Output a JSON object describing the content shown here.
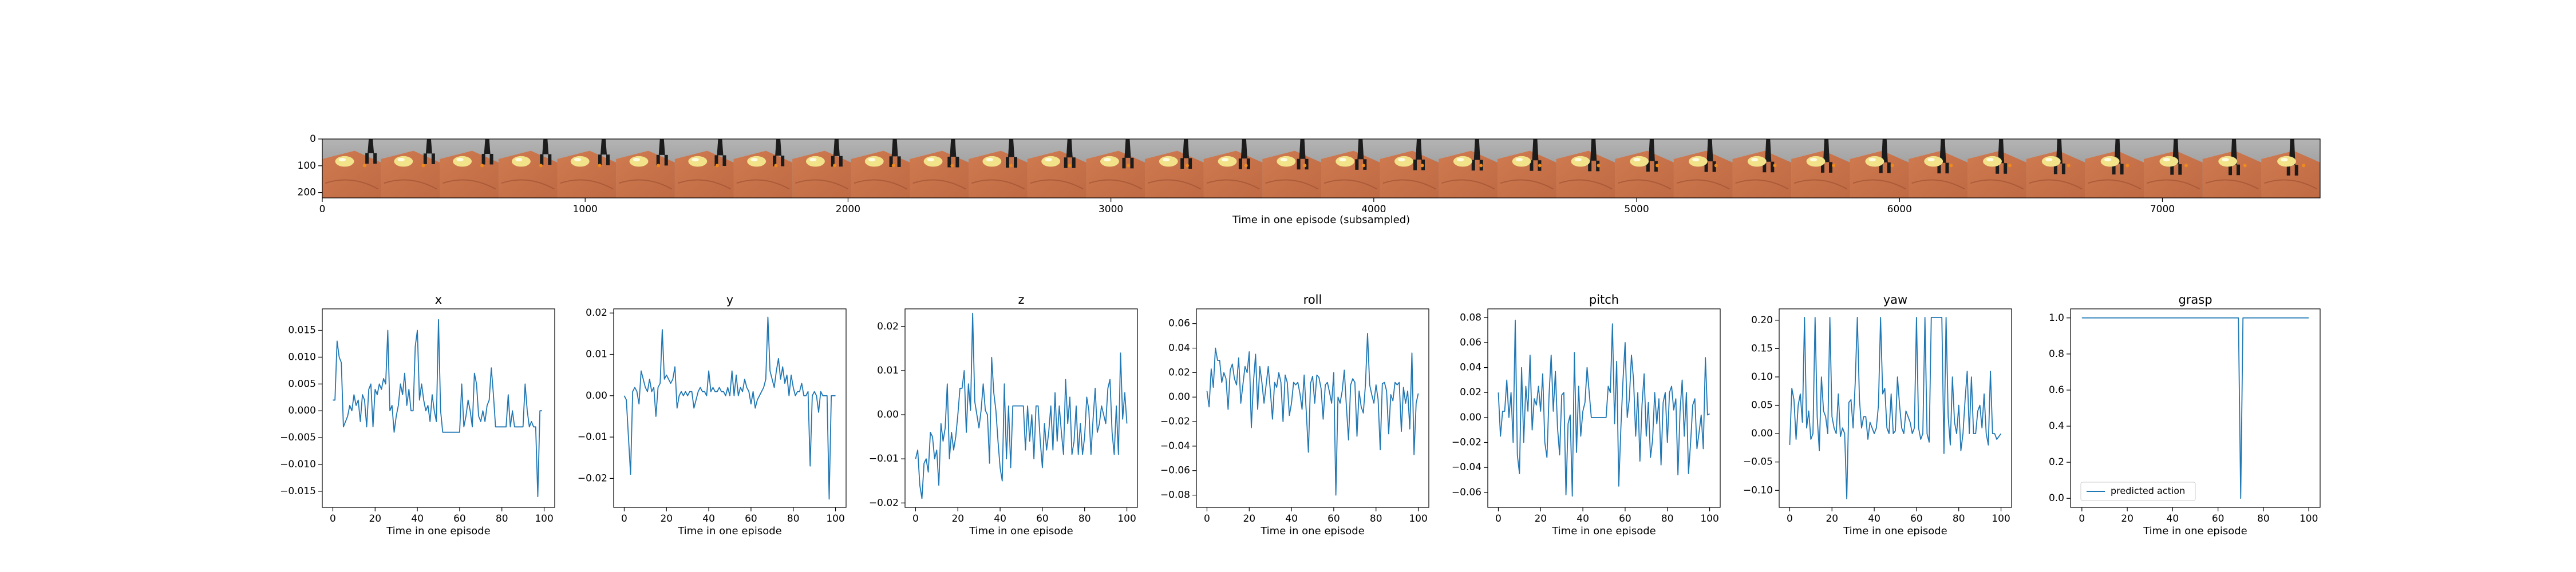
{
  "colors": {
    "line": "#1f77b4",
    "axis": "#000000",
    "background": "#ffffff"
  },
  "chart_data": [
    {
      "type": "image_strip",
      "xlabel": "Time in one episode (subsampled)",
      "xticks": [
        0,
        1000,
        2000,
        3000,
        4000,
        5000,
        6000,
        7000
      ],
      "yticks": [
        0,
        100,
        200
      ],
      "xlim": [
        0,
        7600
      ],
      "ylim": [
        0,
        220
      ],
      "frame_count": 34,
      "scene_colors": {
        "wall": "#8a8a8a",
        "floor": "#c06a44",
        "object": "#f2e28a",
        "gripper": "#1c1c1c"
      }
    },
    {
      "type": "line",
      "title": "x",
      "xlabel": "Time in one episode",
      "xticks": [
        0,
        20,
        40,
        60,
        80,
        100
      ],
      "yticks": [
        -0.015,
        -0.01,
        -0.005,
        0.0,
        0.005,
        0.01,
        0.015
      ],
      "ytick_labels": [
        "−0.015",
        "−0.010",
        "−0.005",
        "0.000",
        "0.005",
        "0.010",
        "0.015"
      ],
      "xlim": [
        -5,
        105
      ],
      "ylim": [
        -0.018,
        0.019
      ],
      "series": [
        {
          "values": [
            0.002,
            0.002,
            0.013,
            0.01,
            0.009,
            -0.003,
            -0.002,
            -0.001,
            0.001,
            0.0,
            0.003,
            0.001,
            0.002,
            -0.002,
            0.003,
            0.002,
            -0.003,
            0.004,
            0.005,
            -0.003,
            0.004,
            0.003,
            0.005,
            0.004,
            0.006,
            0.005,
            0.015,
            0.0,
            0.001,
            -0.004,
            -0.001,
            0.001,
            0.005,
            0.003,
            0.007,
            0.001,
            0.004,
            0.0,
            0.0,
            0.012,
            0.015,
            0.002,
            0.005,
            0.002,
            0.0,
            0.001,
            -0.002,
            0.003,
            0.0,
            -0.002,
            0.017,
            0.0,
            -0.004,
            -0.004,
            -0.004,
            -0.004,
            -0.004,
            -0.004,
            -0.004,
            -0.004,
            -0.004,
            0.005,
            -0.003,
            -0.001,
            0.002,
            0.0,
            -0.003,
            0.007,
            0.005,
            -0.001,
            -0.002,
            0.0,
            -0.002,
            0.001,
            0.002,
            0.008,
            0.003,
            -0.003,
            -0.003,
            -0.003,
            -0.003,
            -0.003,
            -0.003,
            0.003,
            -0.003,
            0.0,
            -0.003,
            -0.003,
            -0.003,
            -0.003,
            -0.003,
            0.005,
            0.0,
            -0.003,
            -0.002,
            -0.003,
            -0.003,
            -0.016,
            0.0,
            0.0
          ]
        }
      ]
    },
    {
      "type": "line",
      "title": "y",
      "xlabel": "Time in one episode",
      "xticks": [
        0,
        20,
        40,
        60,
        80,
        100
      ],
      "yticks": [
        -0.02,
        -0.01,
        0.0,
        0.01,
        0.02
      ],
      "ytick_labels": [
        "−0.02",
        "−0.01",
        "0.00",
        "0.01",
        "0.02"
      ],
      "xlim": [
        -5,
        105
      ],
      "ylim": [
        -0.027,
        0.021
      ],
      "series": [
        {
          "values": [
            0.0,
            -0.001,
            -0.01,
            -0.019,
            0.001,
            0.002,
            0.001,
            -0.002,
            0.006,
            0.004,
            0.002,
            0.001,
            0.004,
            0.001,
            0.002,
            -0.005,
            0.002,
            0.003,
            0.016,
            0.004,
            0.005,
            0.004,
            0.003,
            0.004,
            0.007,
            -0.003,
            0.0,
            0.001,
            0.0,
            0.001,
            0.0,
            0.001,
            0.001,
            -0.003,
            -0.001,
            0.001,
            0.002,
            0.001,
            0.001,
            0.0,
            0.006,
            0.001,
            0.002,
            0.001,
            0.001,
            0.002,
            0.001,
            0.001,
            0.0,
            0.002,
            0.0,
            0.006,
            0.0,
            0.005,
            0.0,
            0.002,
            0.001,
            0.004,
            0.002,
            0.001,
            -0.002,
            0.001,
            -0.003,
            -0.001,
            0.0,
            0.001,
            0.002,
            0.004,
            0.019,
            0.006,
            0.004,
            0.002,
            0.006,
            0.009,
            0.004,
            0.007,
            0.003,
            0.005,
            0.0,
            0.005,
            0.002,
            0.0,
            0.001,
            0.001,
            0.003,
            0.0,
            0.0,
            0.001,
            -0.017,
            0.0,
            0.001,
            0.0,
            -0.004,
            0.001,
            0.0,
            0.0,
            0.0,
            -0.025,
            0.0,
            0.0,
            0.0
          ]
        }
      ]
    },
    {
      "type": "line",
      "title": "z",
      "xlabel": "Time in one episode",
      "xticks": [
        0,
        20,
        40,
        60,
        80,
        100
      ],
      "yticks": [
        -0.02,
        -0.01,
        0.0,
        0.01,
        0.02
      ],
      "ytick_labels": [
        "−0.02",
        "−0.01",
        "0.00",
        "0.01",
        "0.02"
      ],
      "xlim": [
        -5,
        105
      ],
      "ylim": [
        -0.021,
        0.024
      ],
      "series": [
        {
          "values": [
            -0.01,
            -0.008,
            -0.016,
            -0.019,
            -0.011,
            -0.01,
            -0.013,
            -0.004,
            -0.005,
            -0.01,
            -0.008,
            -0.016,
            -0.002,
            -0.006,
            -0.003,
            0.007,
            -0.01,
            -0.004,
            -0.008,
            -0.005,
            0.0,
            0.006,
            0.006,
            0.01,
            -0.004,
            0.007,
            0.001,
            0.023,
            0.003,
            0.0,
            -0.003,
            0.001,
            0.007,
            0.001,
            0.0,
            -0.011,
            0.013,
            0.005,
            0.001,
            -0.006,
            -0.012,
            -0.015,
            0.007,
            -0.01,
            0.002,
            -0.012,
            0.002,
            0.002,
            0.002,
            0.002,
            0.002,
            0.002,
            -0.008,
            0.002,
            -0.006,
            0.0,
            -0.01,
            0.002,
            0.002,
            -0.006,
            -0.012,
            -0.002,
            -0.008,
            -0.004,
            0.002,
            -0.008,
            0.005,
            -0.006,
            0.002,
            -0.004,
            -0.009,
            0.008,
            -0.002,
            0.004,
            -0.009,
            -0.006,
            0.002,
            -0.009,
            -0.002,
            -0.009,
            -0.005,
            0.004,
            0.001,
            -0.009,
            -0.001,
            0.006,
            -0.004,
            -0.002,
            0.002,
            0.0,
            -0.002,
            0.006,
            0.008,
            -0.004,
            -0.009,
            0.002,
            -0.009,
            0.014,
            -0.001,
            0.005,
            -0.002
          ]
        }
      ]
    },
    {
      "type": "line",
      "title": "roll",
      "xlabel": "Time in one episode",
      "xticks": [
        0,
        20,
        40,
        60,
        80,
        100
      ],
      "yticks": [
        -0.08,
        -0.06,
        -0.04,
        -0.02,
        0.0,
        0.02,
        0.04,
        0.06
      ],
      "ytick_labels": [
        "−0.08",
        "−0.06",
        "−0.04",
        "−0.02",
        "0.00",
        "0.02",
        "0.04",
        "0.06"
      ],
      "xlim": [
        -5,
        105
      ],
      "ylim": [
        -0.09,
        0.072
      ],
      "series": [
        {
          "values": [
            0.005,
            -0.008,
            0.023,
            0.008,
            0.04,
            0.03,
            0.03,
            0.012,
            0.02,
            0.015,
            -0.01,
            0.022,
            0.027,
            0.015,
            0.01,
            0.032,
            -0.005,
            0.01,
            0.025,
            0.02,
            0.037,
            -0.025,
            0.012,
            0.035,
            -0.01,
            0.025,
            0.012,
            -0.005,
            0.01,
            0.025,
            0.005,
            -0.018,
            0.012,
            0.008,
            0.02,
            0.012,
            -0.02,
            0.018,
            0.012,
            -0.015,
            -0.005,
            0.012,
            0.01,
            0.012,
            0.003,
            -0.01,
            0.018,
            -0.012,
            -0.045,
            0.011,
            0.017,
            -0.005,
            0.018,
            0.016,
            0.007,
            -0.018,
            0.01,
            0.012,
            0.004,
            -0.005,
            0.02,
            -0.08,
            0.0,
            -0.005,
            0.005,
            0.022,
            -0.008,
            -0.035,
            0.01,
            0.015,
            0.012,
            -0.032,
            0.005,
            -0.008,
            -0.013,
            0.01,
            0.052,
            0.01,
            0.002,
            -0.005,
            0.01,
            -0.002,
            -0.043,
            0.011,
            0.012,
            0.005,
            -0.03,
            0.002,
            -0.003,
            0.012,
            0.01,
            0.012,
            -0.028,
            0.008,
            -0.005,
            0.005,
            -0.026,
            0.036,
            -0.047,
            -0.005,
            0.003
          ]
        }
      ]
    },
    {
      "type": "line",
      "title": "pitch",
      "xlabel": "Time in one episode",
      "xticks": [
        0,
        20,
        40,
        60,
        80,
        100
      ],
      "yticks": [
        -0.06,
        -0.04,
        -0.02,
        0.0,
        0.02,
        0.04,
        0.06,
        0.08
      ],
      "ytick_labels": [
        "−0.06",
        "−0.04",
        "−0.02",
        "0.00",
        "0.02",
        "0.04",
        "0.06",
        "0.08"
      ],
      "xlim": [
        -5,
        105
      ],
      "ylim": [
        -0.072,
        0.087
      ],
      "series": [
        {
          "values": [
            0.02,
            -0.015,
            0.005,
            0.005,
            0.03,
            0.0,
            0.02,
            -0.02,
            0.078,
            -0.03,
            -0.045,
            0.04,
            -0.02,
            0.025,
            0.005,
            0.05,
            -0.01,
            0.015,
            0.01,
            0.025,
            0.005,
            0.035,
            -0.02,
            -0.032,
            0.018,
            0.05,
            0.005,
            0.037,
            -0.008,
            -0.03,
            0.018,
            0.02,
            -0.062,
            -0.005,
            0.002,
            -0.063,
            0.052,
            -0.028,
            0.025,
            -0.015,
            0.005,
            0.012,
            0.04,
            0.02,
            0.0,
            0.0,
            0.0,
            0.0,
            0.0,
            0.0,
            0.0,
            0.0,
            0.025,
            0.02,
            0.075,
            -0.005,
            0.045,
            -0.055,
            -0.008,
            0.03,
            0.06,
            0.0,
            0.015,
            0.05,
            0.03,
            -0.015,
            0.02,
            -0.035,
            0.01,
            0.035,
            -0.015,
            0.012,
            -0.032,
            -0.018,
            0.02,
            -0.005,
            0.015,
            -0.038,
            0.012,
            0.02,
            -0.02,
            0.02,
            0.025,
            0.006,
            0.015,
            -0.046,
            0.005,
            0.03,
            -0.015,
            0.02,
            -0.045,
            -0.02,
            0.01,
            0.015,
            -0.025,
            -0.012,
            0.002,
            -0.025,
            0.048,
            0.002,
            0.003
          ]
        }
      ]
    },
    {
      "type": "line",
      "title": "yaw",
      "xlabel": "Time in one episode",
      "xticks": [
        0,
        20,
        40,
        60,
        80,
        100
      ],
      "yticks": [
        -0.1,
        -0.05,
        0.0,
        0.05,
        0.1,
        0.15,
        0.2
      ],
      "ytick_labels": [
        "−0.10",
        "−0.05",
        "0.00",
        "0.05",
        "0.10",
        "0.15",
        "0.20"
      ],
      "xlim": [
        -5,
        105
      ],
      "ylim": [
        -0.13,
        0.22
      ],
      "series": [
        {
          "values": [
            -0.02,
            0.08,
            0.06,
            -0.01,
            0.05,
            0.07,
            0.02,
            0.205,
            0.01,
            0.04,
            -0.01,
            0.0,
            0.205,
            0.03,
            -0.03,
            0.1,
            0.04,
            0.03,
            0.0,
            0.205,
            0.03,
            0.01,
            0.0,
            0.07,
            -0.005,
            0.01,
            0.0,
            -0.115,
            0.055,
            0.06,
            0.01,
            0.09,
            0.205,
            0.06,
            0.01,
            0.03,
            0.03,
            -0.01,
            0.02,
            0.01,
            0.0,
            0.01,
            0.05,
            0.205,
            0.07,
            0.08,
            0.01,
            0.0,
            0.07,
            0.0,
            0.005,
            0.1,
            0.05,
            0.01,
            0.0,
            0.04,
            0.03,
            0.02,
            0.0,
            0.01,
            0.205,
            0.01,
            -0.01,
            0.0,
            0.205,
            0.0,
            -0.015,
            0.205,
            0.205,
            0.205,
            0.205,
            0.205,
            0.205,
            -0.035,
            0.205,
            0.03,
            -0.02,
            0.1,
            0.02,
            0.0,
            0.05,
            -0.03,
            0.0,
            0.06,
            0.11,
            0.0,
            0.1,
            0.0,
            0.0,
            0.04,
            0.05,
            0.01,
            0.07,
            0.0,
            -0.02,
            0.11,
            0.0,
            0.0,
            -0.01,
            -0.005,
            0.0
          ]
        }
      ]
    },
    {
      "type": "line",
      "title": "grasp",
      "xlabel": "Time in one episode",
      "xticks": [
        0,
        20,
        40,
        60,
        80,
        100
      ],
      "yticks": [
        0.0,
        0.2,
        0.4,
        0.6,
        0.8,
        1.0
      ],
      "ytick_labels": [
        "0.0",
        "0.2",
        "0.4",
        "0.6",
        "0.8",
        "1.0"
      ],
      "xlim": [
        -5,
        105
      ],
      "ylim": [
        -0.05,
        1.05
      ],
      "legend": {
        "placement": "lower-left",
        "label": "predicted action"
      },
      "series": [
        {
          "name": "predicted action",
          "values": [
            1,
            1,
            1,
            1,
            1,
            1,
            1,
            1,
            1,
            1,
            1,
            1,
            1,
            1,
            1,
            1,
            1,
            1,
            1,
            1,
            1,
            1,
            1,
            1,
            1,
            1,
            1,
            1,
            1,
            1,
            1,
            1,
            1,
            1,
            1,
            1,
            1,
            1,
            1,
            1,
            1,
            1,
            1,
            1,
            1,
            1,
            1,
            1,
            1,
            1,
            1,
            1,
            1,
            1,
            1,
            1,
            1,
            1,
            1,
            1,
            1,
            1,
            1,
            1,
            1,
            1,
            1,
            1,
            1,
            1,
            0,
            1,
            1,
            1,
            1,
            1,
            1,
            1,
            1,
            1,
            1,
            1,
            1,
            1,
            1,
            1,
            1,
            1,
            1,
            1,
            1,
            1,
            1,
            1,
            1,
            1,
            1,
            1,
            1,
            1,
            1
          ]
        }
      ]
    }
  ]
}
